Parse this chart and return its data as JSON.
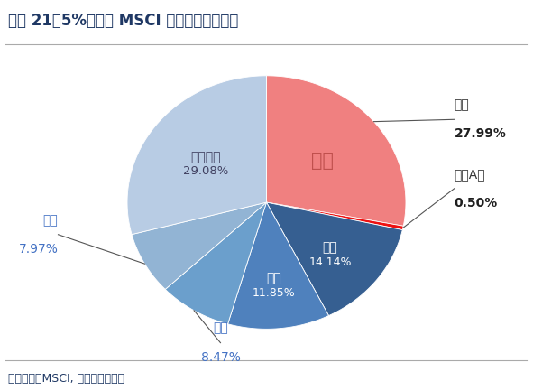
{
  "title": "图表 21：5%纳入时 MSCI 新兴市场指数组成",
  "footer": "资料来源：MSCI, 东吴证券研究所",
  "segments": [
    "中国",
    "中国A股",
    "韩国",
    "台湾",
    "印度",
    "巴西",
    "其他国家"
  ],
  "values": [
    27.99,
    0.5,
    14.14,
    11.85,
    8.47,
    7.97,
    29.08
  ],
  "colors": [
    "#F08080",
    "#EE1111",
    "#365F91",
    "#4F81BD",
    "#6B9FCC",
    "#92B4D4",
    "#B8CCE4"
  ],
  "bg_color": "#FFFFFF",
  "title_color": "#1F3864",
  "footer_color": "#1F3864",
  "footer_bg": "#E2EFDA",
  "title_fontsize": 12,
  "label_fontsize": 10,
  "pct_fontsize": 10,
  "startangle": 90,
  "figsize": [
    5.91,
    4.33
  ],
  "dpi": 100,
  "china_inner_label": "中国",
  "qita_inner_label": "其他国家",
  "qita_inner_pct": "29.08%"
}
